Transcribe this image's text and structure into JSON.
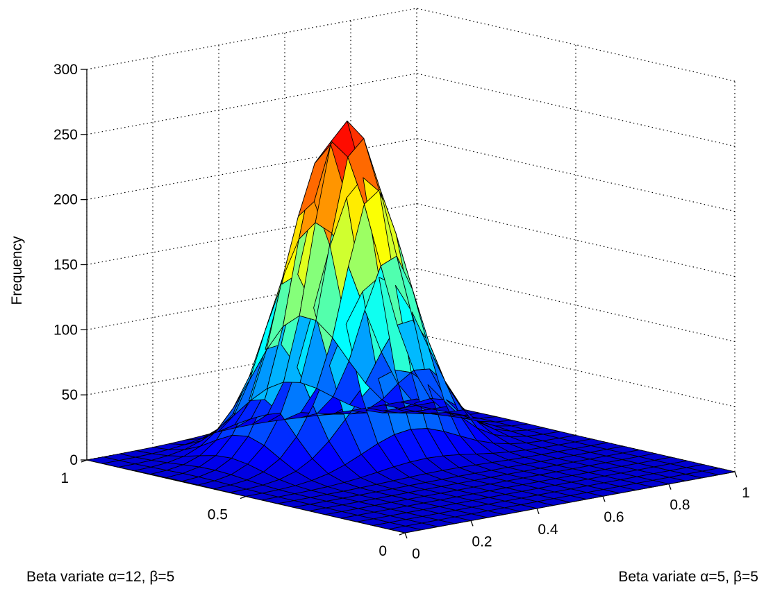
{
  "chart_data": {
    "type": "surface",
    "title": "",
    "zlabel": "Frequency",
    "xlabel": "Beta variate α=5, β=5",
    "ylabel": "Beta variate α=12, β=5",
    "xlim": [
      0,
      1
    ],
    "ylim": [
      0,
      1
    ],
    "zlim": [
      0,
      300
    ],
    "xticks": [
      "0",
      "0.2",
      "0.4",
      "0.6",
      "0.8",
      "1"
    ],
    "yticks": [
      "0",
      "0.5",
      "1"
    ],
    "zticks": [
      "0",
      "50",
      "100",
      "150",
      "200",
      "250",
      "300"
    ],
    "grid": true,
    "colormap": "jet",
    "edge_color": "#000000",
    "surface": {
      "x_range": [
        0,
        1
      ],
      "y_range": [
        0,
        1
      ],
      "grid_size": 20,
      "peak_x": 0.5,
      "peak_y": 0.71,
      "peak_z": 255,
      "spread_x": 0.14,
      "spread_y": 0.1
    }
  }
}
